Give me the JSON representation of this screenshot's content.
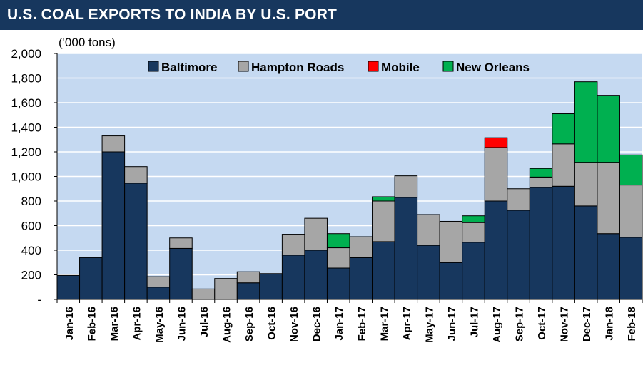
{
  "header": {
    "title": "U.S. COAL EXPORTS TO INDIA BY U.S. PORT"
  },
  "chart_data": {
    "type": "bar",
    "stacked": true,
    "title": "U.S. COAL EXPORTS TO INDIA BY U.S. PORT",
    "unit_label": "('000 tons)",
    "xlabel": "",
    "ylabel": "",
    "ylim": [
      0,
      2000
    ],
    "yticks": [
      0,
      200,
      400,
      600,
      800,
      1000,
      1200,
      1400,
      1600,
      1800,
      2000
    ],
    "ytick_labels": [
      "-",
      "200",
      "400",
      "600",
      "800",
      "1,000",
      "1,200",
      "1,400",
      "1,600",
      "1,800",
      "2,000"
    ],
    "grid": true,
    "legend_position": "top",
    "categories": [
      "Jan-16",
      "Feb-16",
      "Mar-16",
      "Apr-16",
      "May-16",
      "Jun-16",
      "Jul-16",
      "Aug-16",
      "Sep-16",
      "Oct-16",
      "Nov-16",
      "Dec-16",
      "Jan-17",
      "Feb-17",
      "Mar-17",
      "Apr-17",
      "May-17",
      "Jun-17",
      "Jul-17",
      "Aug-17",
      "Sep-17",
      "Oct-17",
      "Nov-17",
      "Dec-17",
      "Jan-18",
      "Feb-18"
    ],
    "series": [
      {
        "name": "Baltimore",
        "color": "#17375e",
        "values": [
          195,
          340,
          1200,
          945,
          100,
          415,
          0,
          0,
          135,
          210,
          360,
          400,
          255,
          340,
          470,
          830,
          440,
          300,
          465,
          800,
          725,
          910,
          920,
          760,
          535,
          505
        ]
      },
      {
        "name": "Hampton Roads",
        "color": "#a6a6a6",
        "values": [
          0,
          0,
          130,
          135,
          85,
          85,
          85,
          170,
          90,
          0,
          170,
          260,
          165,
          170,
          330,
          175,
          250,
          335,
          160,
          435,
          175,
          85,
          345,
          355,
          580,
          425
        ]
      },
      {
        "name": "Mobile",
        "color": "#ff0000",
        "values": [
          0,
          0,
          0,
          0,
          0,
          0,
          0,
          0,
          0,
          0,
          0,
          0,
          0,
          0,
          0,
          0,
          0,
          0,
          0,
          80,
          0,
          0,
          0,
          0,
          0,
          0
        ]
      },
      {
        "name": "New Orleans",
        "color": "#00b050",
        "values": [
          0,
          0,
          0,
          0,
          0,
          0,
          0,
          0,
          0,
          0,
          0,
          0,
          115,
          0,
          35,
          0,
          0,
          0,
          55,
          0,
          0,
          70,
          245,
          655,
          545,
          245
        ]
      }
    ],
    "colors": {
      "plot_background": "#c5d9f1",
      "gridline": "#ffffff",
      "title_bar": "#17375e"
    }
  }
}
